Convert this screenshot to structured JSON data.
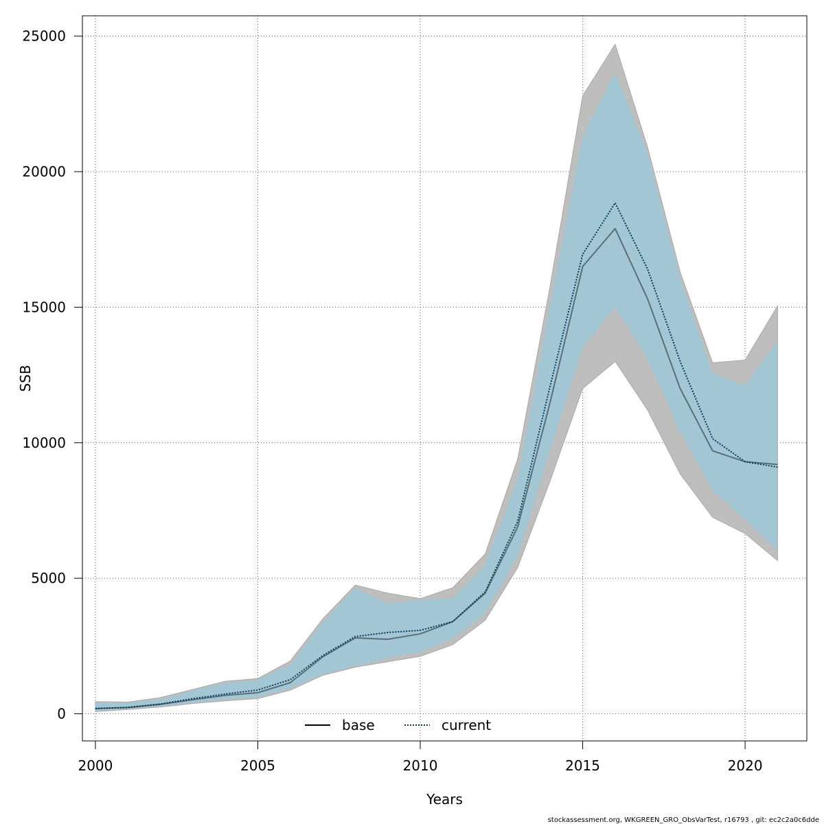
{
  "chart_data": {
    "type": "line",
    "xlabel": "Years",
    "ylabel": "SSB",
    "xlim": [
      1999.6,
      2021.9
    ],
    "ylim": [
      -1000,
      25750
    ],
    "x_ticks": [
      2000,
      2005,
      2010,
      2015,
      2020
    ],
    "y_ticks": [
      0,
      5000,
      10000,
      15000,
      20000,
      25000
    ],
    "grid": true,
    "legend_position": "bottom-center",
    "x": [
      2000,
      2001,
      2002,
      2003,
      2004,
      2005,
      2006,
      2007,
      2008,
      2009,
      2010,
      2011,
      2012,
      2013,
      2014,
      2015,
      2016,
      2017,
      2018,
      2019,
      2020,
      2021
    ],
    "series": [
      {
        "name": "base",
        "line_style": "solid",
        "color": "#000000",
        "band_color": "#bebebe",
        "values": [
          200,
          230,
          350,
          520,
          680,
          780,
          1150,
          2100,
          2800,
          2750,
          2950,
          3400,
          4450,
          6900,
          11500,
          16500,
          17900,
          15300,
          12000,
          9700,
          9300,
          9200
        ],
        "lower": [
          80,
          160,
          250,
          380,
          480,
          560,
          870,
          1420,
          1720,
          1920,
          2120,
          2550,
          3450,
          5400,
          8600,
          12000,
          13000,
          11200,
          8850,
          7250,
          6650,
          5650
        ],
        "upper": [
          450,
          430,
          600,
          900,
          1200,
          1300,
          1950,
          3500,
          4750,
          4450,
          4250,
          4650,
          5900,
          9400,
          15800,
          22800,
          24700,
          20900,
          16300,
          12950,
          13050,
          15050
        ]
      },
      {
        "name": "current",
        "line_style": "dotted",
        "color": "#00375a",
        "band_color": "#87ceeb",
        "values": [
          190,
          240,
          360,
          560,
          730,
          880,
          1260,
          2150,
          2850,
          3000,
          3080,
          3400,
          4500,
          7100,
          12100,
          16950,
          18850,
          16400,
          13000,
          10150,
          9300,
          9100
        ],
        "lower": [
          100,
          180,
          280,
          400,
          520,
          620,
          920,
          1450,
          1750,
          2050,
          2270,
          2770,
          3700,
          5800,
          9700,
          13500,
          15000,
          13100,
          10400,
          8250,
          7150,
          6050
        ],
        "upper": [
          390,
          400,
          520,
          850,
          1130,
          1250,
          1800,
          3350,
          4650,
          4050,
          4200,
          4250,
          5450,
          8650,
          15050,
          21300,
          23650,
          20700,
          16100,
          12550,
          12100,
          13750
        ]
      }
    ]
  },
  "footer": {
    "text": "stockassessment.org, WKGREEN_GRO_ObsVarTest, r16793 , git: ec2c2a0c6dde"
  }
}
